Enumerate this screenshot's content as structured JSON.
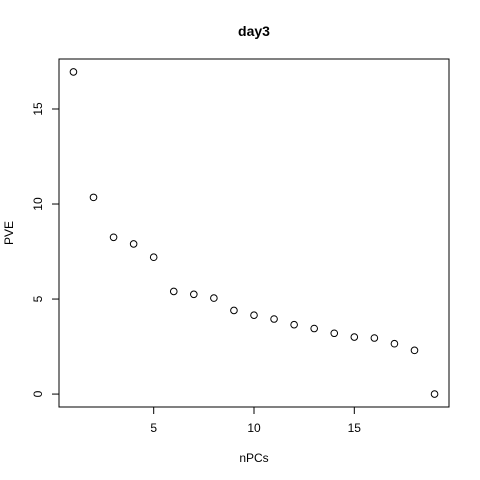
{
  "chart_data": {
    "type": "scatter",
    "title": "day3",
    "xlabel": "nPCs",
    "ylabel": "PVE",
    "x": [
      1,
      2,
      3,
      4,
      5,
      6,
      7,
      8,
      9,
      10,
      11,
      12,
      13,
      14,
      15,
      16,
      17,
      18,
      19
    ],
    "y": [
      16.95,
      10.35,
      8.25,
      7.9,
      7.2,
      5.4,
      5.25,
      5.05,
      4.4,
      4.15,
      3.95,
      3.65,
      3.45,
      3.2,
      3.0,
      2.95,
      2.65,
      2.3,
      0.0
    ],
    "xlim": [
      0.28,
      19.72
    ],
    "ylim": [
      -0.68,
      17.63
    ],
    "x_ticks": [
      5,
      10,
      15
    ],
    "x_tick_labels": [
      "5",
      "10",
      "15"
    ],
    "y_ticks": [
      0,
      5,
      10,
      15
    ],
    "y_tick_labels": [
      "0",
      "5",
      "10",
      "15"
    ],
    "marker": "open-circle",
    "grid": false,
    "legend": "none",
    "colors": {
      "marker": "#000000",
      "frame": "#000000",
      "background": "#ffffff"
    }
  }
}
